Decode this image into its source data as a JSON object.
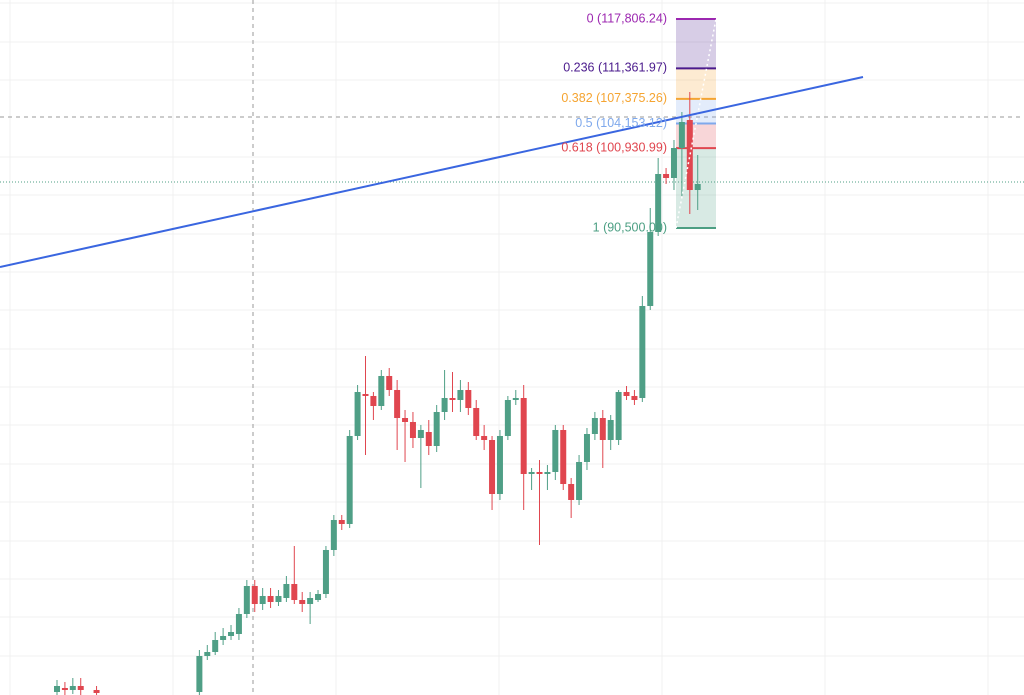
{
  "chart_data": {
    "type": "candlestick",
    "ylim": [
      29486,
      120288
    ],
    "up_color": "#4f9f86",
    "down_color": "#e0464f",
    "categories": [
      null,
      null,
      null,
      null,
      null,
      null,
      null,
      null,
      null,
      null,
      null,
      null,
      null,
      null,
      null,
      null,
      null,
      null,
      null,
      null,
      null,
      null,
      null,
      null,
      null,
      null,
      null,
      null,
      null,
      null,
      null,
      null,
      null,
      null,
      null,
      null,
      null,
      null,
      null,
      null,
      null,
      null,
      null,
      null,
      null,
      null,
      null,
      null,
      null,
      null,
      null,
      null,
      null,
      null,
      null,
      null,
      null,
      null,
      null,
      null,
      null,
      null,
      null,
      null,
      null,
      null,
      null,
      null,
      null,
      null,
      null,
      null,
      null,
      null,
      null,
      null,
      null,
      null,
      null,
      null,
      null,
      null
    ],
    "open": [
      29878,
      30401,
      30140,
      30662,
      null,
      30140,
      null,
      null,
      null,
      null,
      null,
      null,
      null,
      null,
      null,
      null,
      null,
      null,
      29878,
      34582,
      35104,
      36672,
      37195,
      37456,
      40069,
      43727,
      41375,
      42421,
      41637,
      42159,
      43988,
      41898,
      41375,
      41898,
      42682,
      48431,
      52350,
      51827,
      63325,
      68812,
      68551,
      67244,
      71164,
      69335,
      65676,
      65154,
      63063,
      63847,
      62018,
      66460,
      68289,
      68028,
      69335,
      66983,
      63325,
      62802,
      55747,
      63325,
      68028,
      68289,
      58360,
      58621,
      58360,
      58621,
      64109,
      57053,
      54963,
      59928,
      63586,
      65676,
      62802,
      62802,
      69073,
      68551,
      68289,
      80309,
      89977,
      97555,
      97032,
      100952,
      104610,
      95465
    ],
    "high": [
      31446,
      31185,
      31707,
      31707,
      null,
      30662,
      null,
      null,
      null,
      null,
      null,
      null,
      null,
      null,
      null,
      null,
      null,
      null,
      35366,
      36019,
      37717,
      38240,
      38632,
      40853,
      44511,
      44511,
      43466,
      43466,
      43205,
      45034,
      48953,
      42943,
      42943,
      43205,
      48953,
      53003,
      53003,
      64109,
      69988,
      73777,
      69073,
      71948,
      72209,
      70641,
      66722,
      66460,
      64762,
      65415,
      67375,
      71948,
      71686,
      70641,
      70380,
      68028,
      64762,
      63325,
      64109,
      68551,
      69335,
      69988,
      59144,
      60189,
      59536,
      64762,
      64762,
      57837,
      60842,
      64370,
      66460,
      66722,
      66068,
      69335,
      69857,
      69335,
      81616,
      93113,
      99645,
      98339,
      101997,
      105655,
      108268,
      100037
    ],
    "low": [
      29486,
      29486,
      29617,
      29486,
      null,
      29486,
      null,
      null,
      null,
      null,
      null,
      null,
      null,
      null,
      null,
      null,
      null,
      null,
      29486,
      34059,
      34712,
      36019,
      36672,
      36672,
      39546,
      40330,
      40592,
      40853,
      41114,
      41637,
      41375,
      40330,
      38762,
      41637,
      42159,
      47647,
      51044,
      51305,
      62802,
      60842,
      65415,
      66722,
      68551,
      61496,
      59928,
      61757,
      56531,
      60842,
      61234,
      65415,
      66460,
      66460,
      66068,
      62802,
      61496,
      53657,
      54963,
      62802,
      67375,
      53657,
      56270,
      49084,
      56270,
      57576,
      56270,
      52611,
      54310,
      58883,
      62802,
      59144,
      61496,
      62149,
      68028,
      67375,
      67767,
      79787,
      89455,
      96248,
      95465,
      94681,
      92329,
      92852
    ],
    "close": [
      30662,
      30140,
      30662,
      30140,
      null,
      29748,
      null,
      null,
      null,
      null,
      null,
      null,
      null,
      null,
      null,
      null,
      null,
      null,
      34582,
      35104,
      36672,
      37195,
      37717,
      40069,
      43727,
      41375,
      42421,
      41637,
      42421,
      43988,
      41898,
      41375,
      42159,
      42682,
      48431,
      52350,
      51827,
      63325,
      69073,
      68551,
      67244,
      71164,
      69335,
      65676,
      65154,
      63063,
      64109,
      62018,
      66460,
      68289,
      68028,
      69335,
      66983,
      63325,
      62802,
      55747,
      63325,
      68028,
      68289,
      58360,
      58621,
      58360,
      58621,
      64109,
      57053,
      54963,
      59928,
      63586,
      65676,
      62802,
      65415,
      69073,
      68551,
      68028,
      80309,
      89977,
      97555,
      97032,
      100952,
      104349,
      95465,
      96248
    ],
    "fib": {
      "levels": [
        117806.24,
        111361.97,
        107375.26,
        104153.12,
        100930.99,
        90500.0
      ],
      "level_labels": [
        "0 (117,806.24)",
        "0.236 (111,361.97)",
        "0.382 (107,375.26)",
        "0.5 (104,153.12)",
        "0.618 (100,930.99)",
        "1 (90,500.00)"
      ],
      "colors": [
        "#9c27b0",
        "#4a1a8c",
        "#f5a431",
        "#7fa9ec",
        "#e0464f",
        "#4c9f83"
      ]
    }
  }
}
